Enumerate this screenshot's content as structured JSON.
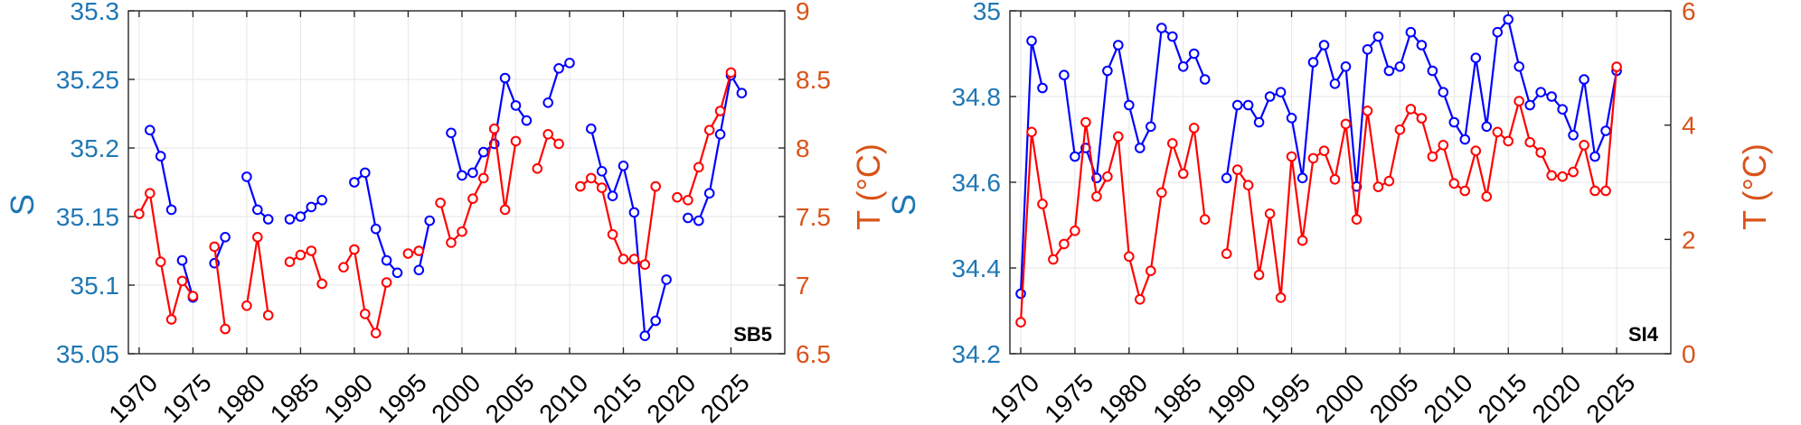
{
  "chart_data": [
    {
      "type": "line",
      "panel_label": "SB5",
      "xlabel": "",
      "ylabel_left": "S",
      "ylabel_right": "T (°C)",
      "xlim": [
        1969,
        2030
      ],
      "ylim_left": [
        35.05,
        35.3
      ],
      "ylim_right": [
        6.5,
        9
      ],
      "x_ticks": [
        1970,
        1975,
        1980,
        1985,
        1990,
        1995,
        2000,
        2005,
        2010,
        2015,
        2020,
        2025
      ],
      "y_ticks_left": [
        "35.05",
        "35.1",
        "35.15",
        "35.2",
        "35.25",
        "35.3"
      ],
      "y_ticks_right": [
        "6.5",
        "7",
        "7.5",
        "8",
        "8.5",
        "9"
      ],
      "grid": true,
      "series": [
        {
          "axis": "left",
          "color": "#0000ff",
          "segments": [
            [
              [
                1971,
                35.213
              ],
              [
                1972,
                35.194
              ],
              [
                1973,
                35.155
              ]
            ],
            [
              [
                1974,
                35.118
              ],
              [
                1975,
                35.091
              ]
            ],
            [
              [
                1977,
                35.116
              ],
              [
                1978,
                35.135
              ]
            ],
            [
              [
                1980,
                35.179
              ],
              [
                1981,
                35.155
              ],
              [
                1982,
                35.148
              ]
            ],
            [
              [
                1984,
                35.148
              ],
              [
                1985,
                35.15
              ],
              [
                1986,
                35.157
              ],
              [
                1987,
                35.162
              ]
            ],
            [
              [
                1990,
                35.175
              ],
              [
                1991,
                35.182
              ],
              [
                1992,
                35.141
              ],
              [
                1993,
                35.118
              ],
              [
                1994,
                35.109
              ]
            ],
            [
              [
                1996,
                35.111
              ],
              [
                1997,
                35.147
              ]
            ],
            [
              [
                1999,
                35.211
              ],
              [
                2000,
                35.18
              ],
              [
                2001,
                35.182
              ],
              [
                2002,
                35.197
              ],
              [
                2003,
                35.203
              ],
              [
                2004,
                35.251
              ],
              [
                2005,
                35.231
              ],
              [
                2006,
                35.22
              ]
            ],
            [
              [
                2008,
                35.233
              ],
              [
                2009,
                35.258
              ],
              [
                2010,
                35.262
              ]
            ],
            [
              [
                2012,
                35.214
              ],
              [
                2013,
                35.183
              ],
              [
                2014,
                35.165
              ],
              [
                2015,
                35.187
              ],
              [
                2016,
                35.153
              ],
              [
                2017,
                35.063
              ],
              [
                2018,
                35.074
              ],
              [
                2019,
                35.104
              ]
            ],
            [
              [
                2021,
                35.149
              ],
              [
                2022,
                35.147
              ],
              [
                2023,
                35.167
              ],
              [
                2024,
                35.21
              ],
              [
                2025,
                35.253
              ],
              [
                2026,
                35.24
              ]
            ]
          ]
        },
        {
          "axis": "right",
          "color": "#ff0000",
          "segments": [
            [
              [
                1970,
                7.52
              ],
              [
                1971,
                7.67
              ],
              [
                1972,
                7.17
              ],
              [
                1973,
                6.75
              ],
              [
                1974,
                7.03
              ],
              [
                1975,
                6.92
              ]
            ],
            [
              [
                1977,
                7.28
              ],
              [
                1978,
                6.68
              ]
            ],
            [
              [
                1980,
                6.85
              ],
              [
                1981,
                7.35
              ],
              [
                1982,
                6.78
              ]
            ],
            [
              [
                1984,
                7.17
              ],
              [
                1985,
                7.22
              ],
              [
                1986,
                7.25
              ],
              [
                1987,
                7.01
              ]
            ],
            [
              [
                1989,
                7.13
              ],
              [
                1990,
                7.26
              ],
              [
                1991,
                6.79
              ],
              [
                1992,
                6.65
              ],
              [
                1993,
                7.02
              ]
            ],
            [
              [
                1995,
                7.23
              ],
              [
                1996,
                7.25
              ]
            ],
            [
              [
                1998,
                7.6
              ],
              [
                1999,
                7.31
              ],
              [
                2000,
                7.39
              ],
              [
                2001,
                7.63
              ],
              [
                2002,
                7.78
              ],
              [
                2003,
                8.14
              ],
              [
                2004,
                7.55
              ],
              [
                2005,
                8.05
              ]
            ],
            [
              [
                2007,
                7.85
              ],
              [
                2008,
                8.1
              ],
              [
                2009,
                8.03
              ]
            ],
            [
              [
                2011,
                7.72
              ],
              [
                2012,
                7.78
              ],
              [
                2013,
                7.71
              ],
              [
                2014,
                7.37
              ],
              [
                2015,
                7.19
              ],
              [
                2016,
                7.19
              ],
              [
                2017,
                7.15
              ],
              [
                2018,
                7.72
              ]
            ],
            [
              [
                2020,
                7.64
              ],
              [
                2021,
                7.62
              ],
              [
                2022,
                7.86
              ],
              [
                2023,
                8.13
              ],
              [
                2024,
                8.27
              ],
              [
                2025,
                8.55
              ]
            ]
          ]
        }
      ]
    },
    {
      "type": "line",
      "panel_label": "SI4",
      "xlabel": "",
      "ylabel_left": "S",
      "ylabel_right": "T (°C)",
      "xlim": [
        1969,
        2030
      ],
      "ylim_left": [
        34.2,
        35
      ],
      "ylim_right": [
        0,
        6
      ],
      "x_ticks": [
        1970,
        1975,
        1980,
        1985,
        1990,
        1995,
        2000,
        2005,
        2010,
        2015,
        2020,
        2025
      ],
      "y_ticks_left": [
        "34.2",
        "34.4",
        "34.6",
        "34.8",
        "35"
      ],
      "y_ticks_right": [
        "0",
        "2",
        "4",
        "6"
      ],
      "grid": true,
      "series": [
        {
          "axis": "left",
          "color": "#0000ff",
          "segments": [
            [
              [
                1970,
                34.34
              ],
              [
                1971,
                34.93
              ],
              [
                1972,
                34.82
              ]
            ],
            [
              [
                1974,
                34.85
              ],
              [
                1975,
                34.66
              ],
              [
                1976,
                34.68
              ],
              [
                1977,
                34.61
              ],
              [
                1978,
                34.86
              ],
              [
                1979,
                34.92
              ],
              [
                1980,
                34.78
              ],
              [
                1981,
                34.68
              ],
              [
                1982,
                34.73
              ],
              [
                1983,
                34.96
              ],
              [
                1984,
                34.94
              ],
              [
                1985,
                34.87
              ],
              [
                1986,
                34.9
              ],
              [
                1987,
                34.84
              ]
            ],
            [
              [
                1989,
                34.61
              ],
              [
                1990,
                34.78
              ],
              [
                1991,
                34.78
              ],
              [
                1992,
                34.74
              ],
              [
                1993,
                34.8
              ],
              [
                1994,
                34.81
              ],
              [
                1995,
                34.75
              ],
              [
                1996,
                34.61
              ],
              [
                1997,
                34.88
              ],
              [
                1998,
                34.92
              ],
              [
                1999,
                34.83
              ],
              [
                2000,
                34.87
              ],
              [
                2001,
                34.59
              ],
              [
                2002,
                34.91
              ],
              [
                2003,
                34.94
              ],
              [
                2004,
                34.86
              ],
              [
                2005,
                34.87
              ],
              [
                2006,
                34.95
              ],
              [
                2007,
                34.92
              ],
              [
                2008,
                34.86
              ],
              [
                2009,
                34.81
              ],
              [
                2010,
                34.74
              ],
              [
                2011,
                34.7
              ],
              [
                2012,
                34.89
              ],
              [
                2013,
                34.73
              ],
              [
                2014,
                34.95
              ],
              [
                2015,
                34.98
              ],
              [
                2016,
                34.87
              ],
              [
                2017,
                34.78
              ],
              [
                2018,
                34.81
              ],
              [
                2019,
                34.8
              ],
              [
                2020,
                34.77
              ],
              [
                2021,
                34.71
              ],
              [
                2022,
                34.84
              ],
              [
                2023,
                34.66
              ],
              [
                2024,
                34.72
              ],
              [
                2025,
                34.86
              ]
            ]
          ]
        },
        {
          "axis": "right",
          "color": "#ff0000",
          "segments": [
            [
              [
                1970,
                0.55
              ],
              [
                1971,
                3.88
              ],
              [
                1972,
                2.62
              ],
              [
                1973,
                1.65
              ],
              [
                1974,
                1.92
              ],
              [
                1975,
                2.15
              ],
              [
                1976,
                4.05
              ],
              [
                1977,
                2.75
              ],
              [
                1978,
                3.1
              ],
              [
                1979,
                3.8
              ],
              [
                1980,
                1.7
              ],
              [
                1981,
                0.95
              ],
              [
                1982,
                1.45
              ],
              [
                1983,
                2.82
              ],
              [
                1984,
                3.68
              ],
              [
                1985,
                3.15
              ],
              [
                1986,
                3.95
              ],
              [
                1987,
                2.35
              ]
            ],
            [
              [
                1989,
                1.75
              ],
              [
                1990,
                3.22
              ],
              [
                1991,
                2.95
              ],
              [
                1992,
                1.38
              ],
              [
                1993,
                2.45
              ],
              [
                1994,
                0.98
              ],
              [
                1995,
                3.45
              ],
              [
                1996,
                1.98
              ],
              [
                1997,
                3.42
              ],
              [
                1998,
                3.55
              ],
              [
                1999,
                3.05
              ],
              [
                2000,
                4.02
              ],
              [
                2001,
                2.35
              ],
              [
                2002,
                4.25
              ],
              [
                2003,
                2.92
              ],
              [
                2004,
                3.02
              ],
              [
                2005,
                3.92
              ],
              [
                2006,
                4.28
              ],
              [
                2007,
                4.12
              ],
              [
                2008,
                3.45
              ],
              [
                2009,
                3.65
              ],
              [
                2010,
                2.98
              ],
              [
                2011,
                2.85
              ],
              [
                2012,
                3.55
              ],
              [
                2013,
                2.75
              ],
              [
                2014,
                3.88
              ],
              [
                2015,
                3.72
              ],
              [
                2016,
                4.42
              ],
              [
                2017,
                3.7
              ],
              [
                2018,
                3.52
              ],
              [
                2019,
                3.12
              ],
              [
                2020,
                3.1
              ],
              [
                2021,
                3.18
              ],
              [
                2022,
                3.65
              ],
              [
                2023,
                2.85
              ],
              [
                2024,
                2.85
              ],
              [
                2025,
                5.02
              ]
            ]
          ]
        }
      ]
    }
  ]
}
